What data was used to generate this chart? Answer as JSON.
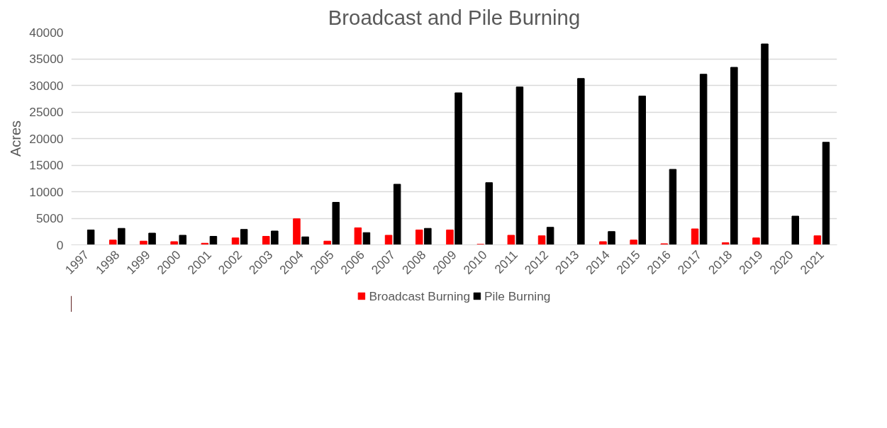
{
  "chart_data": {
    "type": "bar",
    "title": "Broadcast and Pile Burning",
    "ylabel": "Acres",
    "categories": [
      "1997",
      "1998",
      "1999",
      "2000",
      "2001",
      "2002",
      "2003",
      "2004",
      "2005",
      "2006",
      "2007",
      "2008",
      "2009",
      "2010",
      "2011",
      "2012",
      "2013",
      "2014",
      "2015",
      "2016",
      "2017",
      "2018",
      "2019",
      "2020",
      "2021"
    ],
    "series": [
      {
        "name": "Broadcast Burning",
        "color": "#ff0000",
        "values": [
          0,
          900,
          700,
          600,
          300,
          1300,
          1600,
          4900,
          700,
          3200,
          1800,
          2800,
          2800,
          100,
          1800,
          1700,
          0,
          600,
          900,
          200,
          3000,
          400,
          1300,
          0,
          1700
        ]
      },
      {
        "name": "Pile Burning",
        "color": "#000000",
        "values": [
          2800,
          3100,
          2200,
          1800,
          1600,
          2900,
          2600,
          1500,
          8000,
          2300,
          11400,
          3100,
          28600,
          11700,
          29700,
          3300,
          31300,
          2500,
          28000,
          14200,
          32100,
          33400,
          37800,
          5400,
          19300
        ]
      }
    ],
    "ylim": [
      0,
      40000
    ],
    "yticks": [
      0,
      5000,
      10000,
      15000,
      20000,
      25000,
      30000,
      35000,
      40000
    ],
    "grid": "y",
    "legend": "bottom"
  }
}
